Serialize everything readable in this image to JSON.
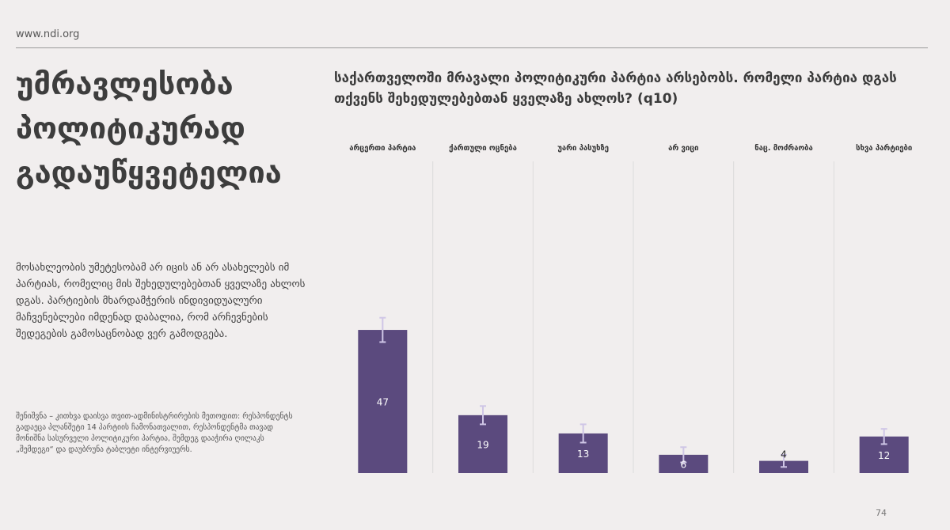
{
  "site_url": "www.ndi.org",
  "headline": [
    "უმრავლესობა",
    "პოლიტიკურად",
    "გადაუწყვეტელია"
  ],
  "body_text": "მოსახლეობის უმეტესობამ არ იცის ან არ ასახელებს იმ პარტიას, რომელიც მის შეხედულებებთან ყველაზე ახლოს დგას. პარტიების მხარდამჭერის ინდივიდუალური მაჩვენებლები იმდენად დაბალია, რომ არჩევნების შედეგების გამოსაცნობად ვერ გამოდგება.",
  "note_text": "შენიშვნა – კითხვა დაისვა თვით-ადმინისტრირების მეთოდით: რესპონდენტს გადაეცა პლანშეტი 14 პარტიის ჩამონათვალით, რესპონდენტმა თავად მონიშნა სასურველი პოლიტიკური პარტია, შემდეგ დააჭირა ღილაკს „შემდეგი“ და დაუბრუნა ტაბლეტი ინტერვიუერს.",
  "question": "საქართველოში მრავალი პოლიტიკური პარტია არსებობს. რომელი პარტია დგას თქვენს შეხედულებებთან ყველაზე ახლოს? (q10)",
  "page_number": "74",
  "colors": {
    "bar": "#5b4a7e",
    "error_bar": "#cfc6e6",
    "gridline": "#dcdcdc",
    "background": "#f1eeee"
  },
  "chart_data": {
    "type": "bar",
    "categories": [
      "არცერთი პარტია",
      "ქართული ოცნება",
      "უარი პასუხზე",
      "არ ვიცი",
      "ნაც. მოძრაობა",
      "სხვა პარტიები"
    ],
    "values": [
      47,
      19,
      13,
      6,
      4,
      12
    ],
    "error_margin": [
      4,
      3,
      3,
      2.5,
      2,
      2.5
    ],
    "data_labels": [
      "47",
      "19",
      "13",
      "6",
      "4",
      "12"
    ],
    "ylim": [
      0,
      100
    ],
    "grid": true,
    "legend": "none"
  }
}
